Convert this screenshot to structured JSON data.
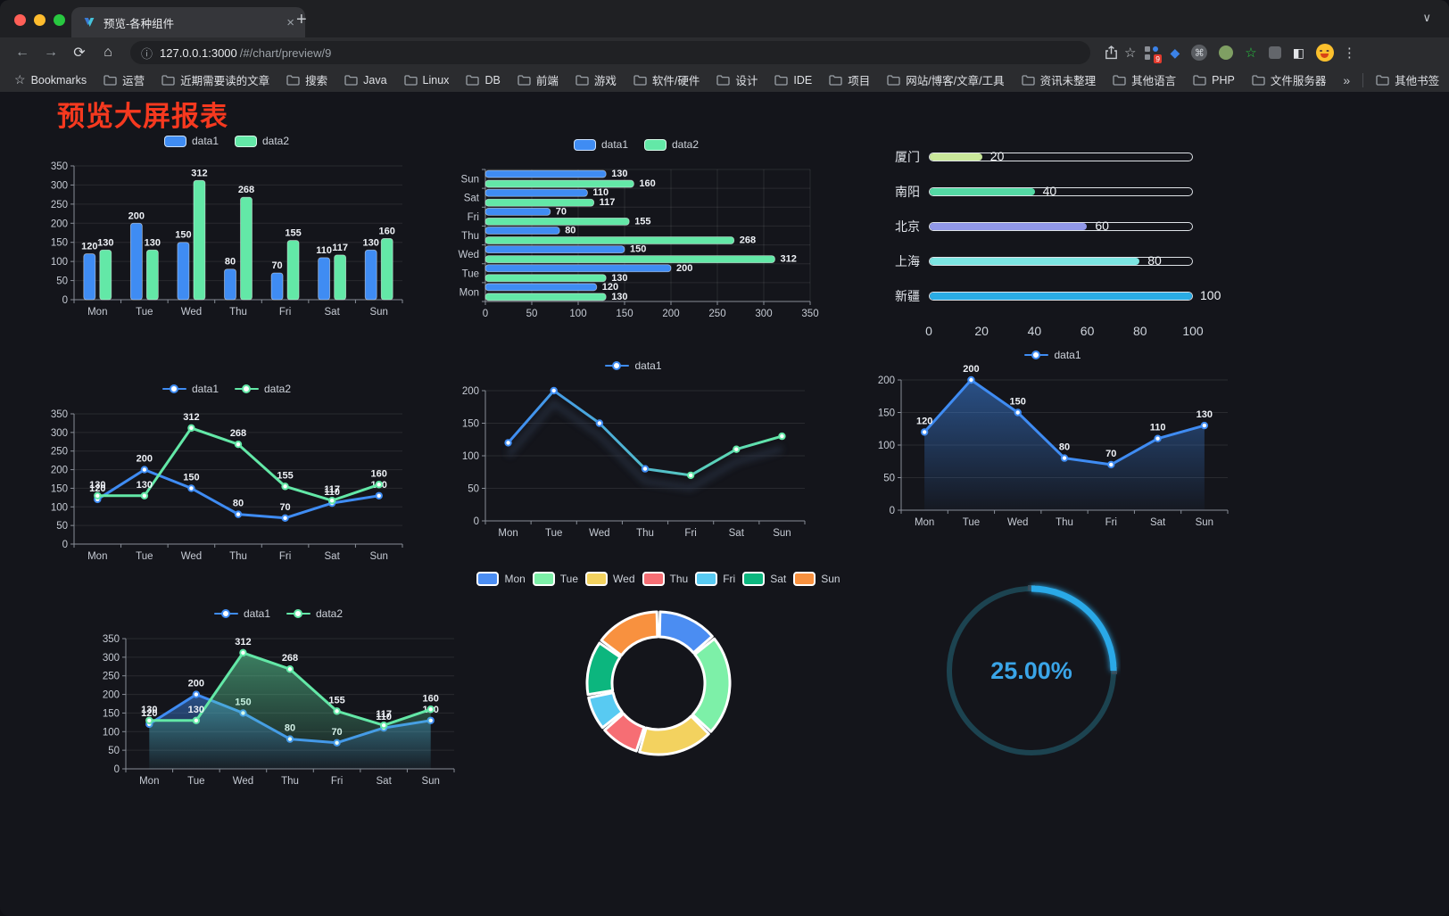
{
  "browser": {
    "tab": {
      "title": "预览-各种组件",
      "close_glyph": "×",
      "new_tab_glyph": "+",
      "search_glyph": "∨"
    },
    "toolbar": {
      "back_glyph": "←",
      "forward_glyph": "→",
      "reload_glyph": "⟳",
      "home_glyph": "⌂",
      "info_glyph": "ⓘ",
      "star_glyph": "☆",
      "menu_glyph": "⋮",
      "url_host": "127.0.0.1:3000",
      "url_path": "/#/chart/preview/9",
      "extension_badge": "9",
      "cmd_glyph": "⌘",
      "kite_glyph": "◆",
      "green_star_glyph": "☆",
      "half_square_glyph": "◧"
    },
    "bookmarks": {
      "star_glyph": "☆",
      "label": "Bookmarks",
      "items": [
        "运营",
        "近期需要读的文章",
        "搜索",
        "Java",
        "Linux",
        "DB",
        "前端",
        "游戏",
        "软件/硬件",
        "设计",
        "IDE",
        "项目",
        "网站/博客/文章/工具",
        "资讯未整理",
        "其他语言",
        "PHP",
        "文件服务器"
      ],
      "overflow_glyph": "»",
      "other_label": "其他书签"
    }
  },
  "page": {
    "heading": "预览大屏报表",
    "heading_color": "#f6391f",
    "background": "#14151b"
  },
  "chart_data": [
    {
      "id": "grouped-bar-vertical",
      "type": "bar",
      "orientation": "vertical",
      "categories": [
        "Mon",
        "Tue",
        "Wed",
        "Thu",
        "Fri",
        "Sat",
        "Sun"
      ],
      "series": [
        {
          "name": "data1",
          "color": "#3f8cf3",
          "values": [
            120,
            200,
            150,
            80,
            70,
            110,
            130
          ]
        },
        {
          "name": "data2",
          "color": "#63e8a7",
          "values": [
            130,
            130,
            312,
            268,
            155,
            117,
            160
          ]
        }
      ],
      "ylim": [
        0,
        350
      ],
      "ytick_step": 50,
      "legend_style": "rect",
      "value_labels": true,
      "grid": true
    },
    {
      "id": "grouped-bar-horizontal",
      "type": "bar",
      "orientation": "horizontal",
      "categories": [
        "Mon",
        "Tue",
        "Wed",
        "Thu",
        "Fri",
        "Sat",
        "Sun"
      ],
      "categories_axis_top_to_bottom": [
        "Sun",
        "Sat",
        "Fri",
        "Thu",
        "Wed",
        "Tue",
        "Mon"
      ],
      "series": [
        {
          "name": "data1",
          "color": "#3f8cf3",
          "values": [
            120,
            200,
            150,
            80,
            70,
            110,
            130
          ]
        },
        {
          "name": "data2",
          "color": "#63e8a7",
          "values": [
            130,
            130,
            312,
            268,
            155,
            117,
            160
          ]
        }
      ],
      "xlim": [
        0,
        350
      ],
      "xtick_step": 50,
      "legend_style": "rect",
      "value_labels": true,
      "grid": true
    },
    {
      "id": "progress-list",
      "type": "progress",
      "max": 100,
      "axis_ticks": [
        0,
        20,
        40,
        60,
        80,
        100
      ],
      "items": [
        {
          "label": "厦门",
          "value": 20,
          "color": "#c9e79a"
        },
        {
          "label": "南阳",
          "value": 40,
          "color": "#54d9a4"
        },
        {
          "label": "北京",
          "value": 60,
          "color": "#9198e8"
        },
        {
          "label": "上海",
          "value": 80,
          "color": "#7ce5e2"
        },
        {
          "label": "新疆",
          "value": 100,
          "color": "#2aace5"
        }
      ]
    },
    {
      "id": "line-two-series",
      "type": "line",
      "categories": [
        "Mon",
        "Tue",
        "Wed",
        "Thu",
        "Fri",
        "Sat",
        "Sun"
      ],
      "series": [
        {
          "name": "data1",
          "color": "#3f8cf3",
          "values": [
            120,
            200,
            150,
            80,
            70,
            110,
            130
          ]
        },
        {
          "name": "data2",
          "color": "#63e8a7",
          "values": [
            130,
            130,
            312,
            268,
            155,
            117,
            160
          ]
        }
      ],
      "ylim": [
        0,
        350
      ],
      "ytick_step": 50,
      "legend_style": "line-dot",
      "markers": true,
      "value_labels": true,
      "grid": true
    },
    {
      "id": "line-gradient-shadow",
      "type": "line",
      "categories": [
        "Mon",
        "Tue",
        "Wed",
        "Thu",
        "Fri",
        "Sat",
        "Sun"
      ],
      "series": [
        {
          "name": "data1",
          "color": "#3f8cf3",
          "gradient": [
            "#3f8cf3",
            "#63e8a7"
          ],
          "shadow": true,
          "values": [
            120,
            200,
            150,
            80,
            70,
            110,
            130
          ]
        }
      ],
      "ylim": [
        0,
        200
      ],
      "ytick_step": 50,
      "legend_style": "line-dot",
      "markers": true,
      "value_labels": false,
      "grid": true
    },
    {
      "id": "area-single-series",
      "type": "line",
      "categories": [
        "Mon",
        "Tue",
        "Wed",
        "Thu",
        "Fri",
        "Sat",
        "Sun"
      ],
      "series": [
        {
          "name": "data1",
          "color": "#3f8cf3",
          "area": true,
          "values": [
            120,
            200,
            150,
            80,
            70,
            110,
            130
          ]
        }
      ],
      "ylim": [
        0,
        200
      ],
      "ytick_step": 50,
      "legend_style": "line-dot",
      "markers": true,
      "value_labels": true,
      "grid": true
    },
    {
      "id": "line-two-series-area",
      "type": "line",
      "categories": [
        "Mon",
        "Tue",
        "Wed",
        "Thu",
        "Fri",
        "Sat",
        "Sun"
      ],
      "series": [
        {
          "name": "data1",
          "color": "#3f8cf3",
          "area": true,
          "values": [
            120,
            200,
            150,
            80,
            70,
            110,
            130
          ]
        },
        {
          "name": "data2",
          "color": "#63e8a7",
          "area": true,
          "values": [
            130,
            130,
            312,
            268,
            155,
            117,
            160
          ]
        }
      ],
      "ylim": [
        0,
        350
      ],
      "ytick_step": 50,
      "legend_style": "line-dot",
      "markers": true,
      "value_labels": true,
      "grid": true
    },
    {
      "id": "donut-pie",
      "type": "pie",
      "donut": true,
      "legend_style": "pie",
      "items": [
        {
          "name": "Mon",
          "value": 120,
          "color": "#4b8df2"
        },
        {
          "name": "Tue",
          "value": 200,
          "color": "#7df0a8"
        },
        {
          "name": "Wed",
          "value": 150,
          "color": "#f3d25f"
        },
        {
          "name": "Thu",
          "value": 80,
          "color": "#f66e74"
        },
        {
          "name": "Fri",
          "value": 70,
          "color": "#58caf2"
        },
        {
          "name": "Sat",
          "value": 110,
          "color": "#0cb67e"
        },
        {
          "name": "Sun",
          "value": 130,
          "color": "#f8913f"
        }
      ]
    },
    {
      "id": "ring-progress-gauge",
      "type": "gauge",
      "value": 25,
      "display": "25.00%",
      "color": "#2aa9e8",
      "track_color": "#1c4350",
      "text_color": "#3aa5e8"
    }
  ]
}
